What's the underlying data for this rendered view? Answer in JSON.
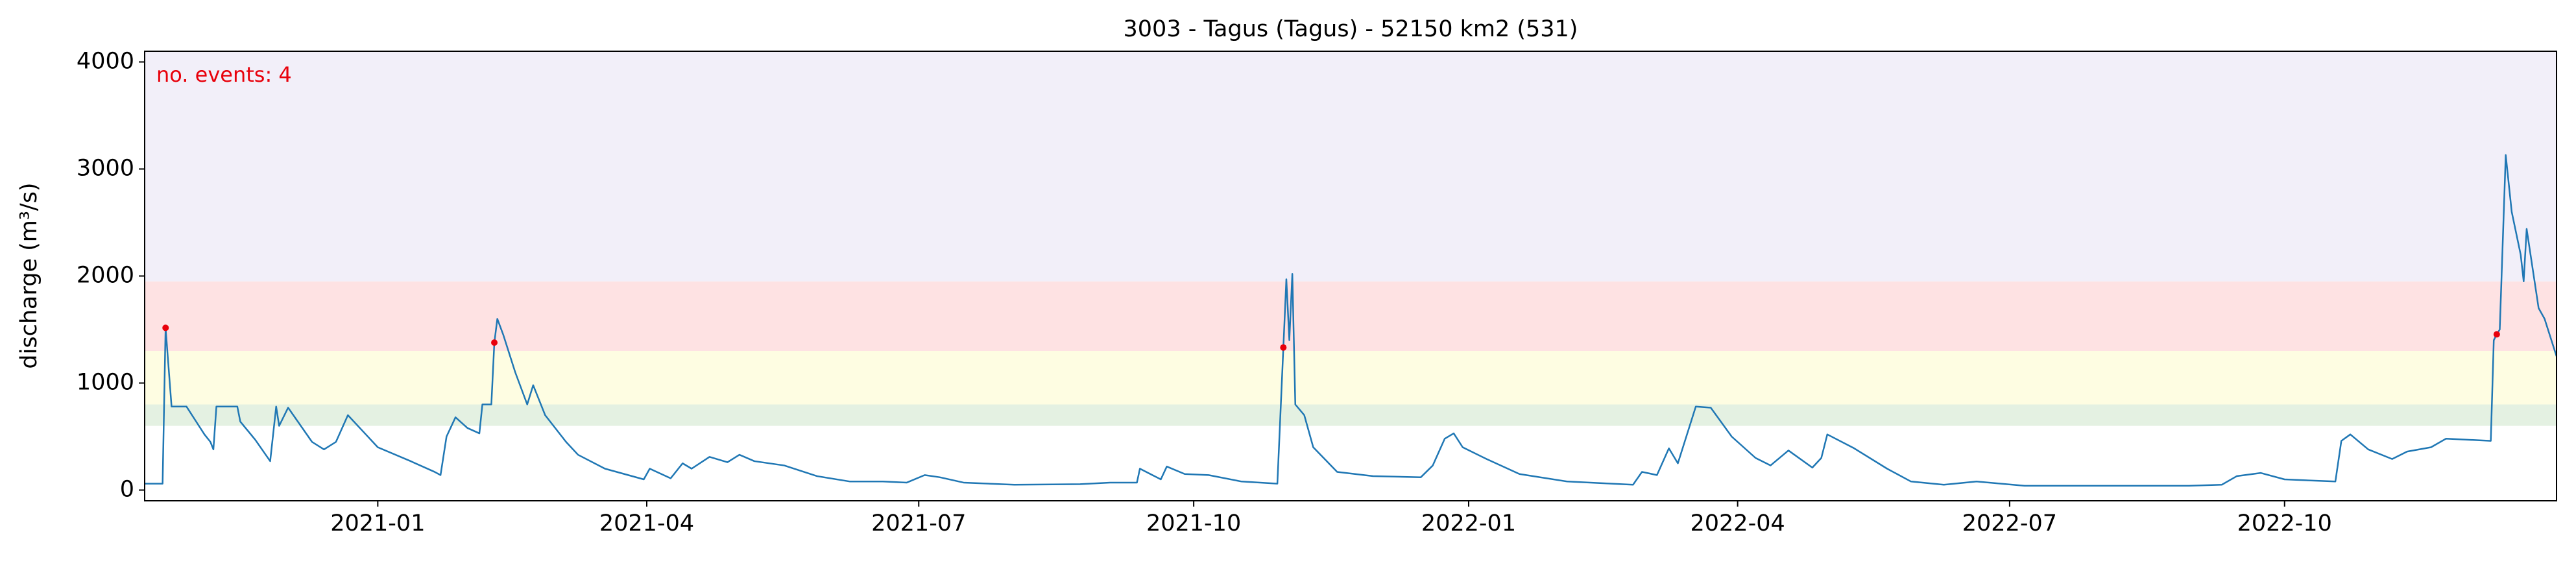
{
  "chart_data": {
    "type": "line",
    "title": "3003 - Tagus (Tagus) - 52150 km2 (531)",
    "ylabel": "discharge (m³/s)",
    "annotation": "no. events: 4",
    "annotation_color": "#e8000b",
    "xlim": [
      "2020-10-15",
      "2022-12-31"
    ],
    "xticks": [
      {
        "value": "2021-01-01",
        "label": "2021-01"
      },
      {
        "value": "2021-04-01",
        "label": "2021-04"
      },
      {
        "value": "2021-07-01",
        "label": "2021-07"
      },
      {
        "value": "2021-10-01",
        "label": "2021-10"
      },
      {
        "value": "2022-01-01",
        "label": "2022-01"
      },
      {
        "value": "2022-04-01",
        "label": "2022-04"
      },
      {
        "value": "2022-07-01",
        "label": "2022-07"
      },
      {
        "value": "2022-10-01",
        "label": "2022-10"
      }
    ],
    "ylim": [
      -100,
      4100
    ],
    "yticks": [
      0,
      1000,
      2000,
      3000,
      4000
    ],
    "grid": false,
    "bands": [
      {
        "from": 600,
        "to": 800,
        "color": "#e4f1e2"
      },
      {
        "from": 800,
        "to": 1300,
        "color": "#fefde2"
      },
      {
        "from": 1300,
        "to": 1950,
        "color": "#fee2e3"
      },
      {
        "from": 1950,
        "to": 4100,
        "color": "#f2eff9"
      }
    ],
    "series": [
      {
        "color": "#1f77b4",
        "x": [
          "2020-10-15",
          "2020-10-21",
          "2020-10-22",
          "2020-10-24",
          "2020-10-29",
          "2020-11-01",
          "2020-11-04",
          "2020-11-06",
          "2020-11-07",
          "2020-11-08",
          "2020-11-15",
          "2020-11-16",
          "2020-11-21",
          "2020-11-26",
          "2020-11-28",
          "2020-11-29",
          "2020-12-02",
          "2020-12-05",
          "2020-12-10",
          "2020-12-14",
          "2020-12-18",
          "2020-12-22",
          "2020-12-28",
          "2021-01-01",
          "2021-01-12",
          "2021-01-20",
          "2021-01-22",
          "2021-01-24",
          "2021-01-27",
          "2021-01-31",
          "2021-02-04",
          "2021-02-05",
          "2021-02-08",
          "2021-02-09",
          "2021-02-10",
          "2021-02-12",
          "2021-02-16",
          "2021-02-20",
          "2021-02-22",
          "2021-02-26",
          "2021-03-05",
          "2021-03-09",
          "2021-03-18",
          "2021-03-31",
          "2021-04-02",
          "2021-04-09",
          "2021-04-13",
          "2021-04-16",
          "2021-04-22",
          "2021-04-28",
          "2021-05-02",
          "2021-05-07",
          "2021-05-17",
          "2021-05-28",
          "2021-06-08",
          "2021-06-19",
          "2021-06-27",
          "2021-07-03",
          "2021-07-08",
          "2021-07-16",
          "2021-08-02",
          "2021-08-24",
          "2021-09-03",
          "2021-09-12",
          "2021-09-13",
          "2021-09-20",
          "2021-09-22",
          "2021-09-28",
          "2021-10-06",
          "2021-10-17",
          "2021-10-29",
          "2021-10-31",
          "2021-11-01",
          "2021-11-02",
          "2021-11-03",
          "2021-11-04",
          "2021-11-07",
          "2021-11-10",
          "2021-11-18",
          "2021-11-30",
          "2021-12-16",
          "2021-12-20",
          "2021-12-24",
          "2021-12-27",
          "2021-12-30",
          "2022-01-07",
          "2022-01-18",
          "2022-02-03",
          "2022-02-25",
          "2022-02-28",
          "2022-03-05",
          "2022-03-09",
          "2022-03-12",
          "2022-03-18",
          "2022-03-23",
          "2022-03-30",
          "2022-04-07",
          "2022-04-12",
          "2022-04-18",
          "2022-04-26",
          "2022-04-29",
          "2022-05-01",
          "2022-05-10",
          "2022-05-21",
          "2022-05-29",
          "2022-06-09",
          "2022-06-20",
          "2022-07-06",
          "2022-08-08",
          "2022-08-30",
          "2022-09-10",
          "2022-09-15",
          "2022-09-23",
          "2022-10-01",
          "2022-10-18",
          "2022-10-20",
          "2022-10-23",
          "2022-10-29",
          "2022-11-06",
          "2022-11-11",
          "2022-11-19",
          "2022-11-24",
          "2022-12-09",
          "2022-12-10",
          "2022-12-11",
          "2022-12-12",
          "2022-12-14",
          "2022-12-16",
          "2022-12-19",
          "2022-12-20",
          "2022-12-21",
          "2022-12-25",
          "2022-12-27",
          "2022-12-31"
        ],
        "values": [
          60,
          60,
          1516,
          780,
          780,
          650,
          520,
          450,
          380,
          780,
          780,
          640,
          470,
          270,
          780,
          600,
          770,
          650,
          450,
          380,
          450,
          700,
          520,
          400,
          270,
          170,
          140,
          500,
          680,
          580,
          530,
          800,
          800,
          1378,
          1600,
          1450,
          1100,
          800,
          980,
          700,
          450,
          330,
          200,
          100,
          200,
          110,
          250,
          200,
          310,
          260,
          330,
          270,
          230,
          130,
          80,
          80,
          70,
          140,
          120,
          70,
          50,
          55,
          70,
          70,
          200,
          100,
          220,
          150,
          140,
          80,
          60,
          1332,
          1970,
          1400,
          2020,
          800,
          700,
          400,
          170,
          130,
          120,
          230,
          480,
          530,
          400,
          290,
          150,
          80,
          50,
          170,
          140,
          390,
          250,
          780,
          770,
          500,
          300,
          230,
          370,
          210,
          300,
          520,
          390,
          200,
          80,
          50,
          80,
          40,
          40,
          40,
          50,
          130,
          160,
          100,
          80,
          460,
          520,
          380,
          290,
          360,
          400,
          480,
          460,
          1400,
          1455,
          1500,
          3130,
          2600,
          2200,
          1950,
          2440,
          1700,
          1600,
          1250
        ]
      }
    ],
    "events": {
      "color": "#e8000b",
      "x": [
        "2020-10-22",
        "2021-02-09",
        "2021-10-31",
        "2022-12-11"
      ],
      "values": [
        1516,
        1378,
        1332,
        1455
      ]
    }
  }
}
